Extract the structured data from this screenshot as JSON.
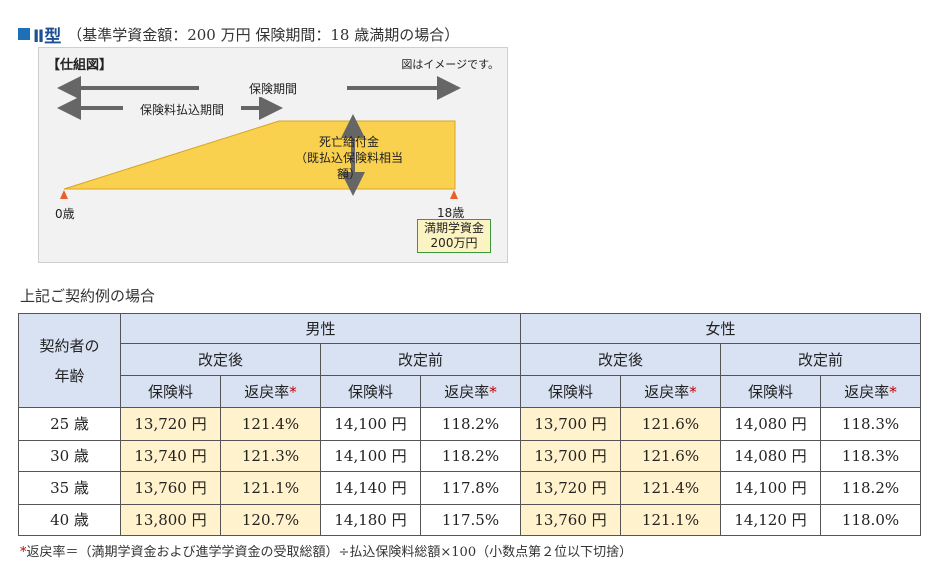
{
  "heading": {
    "type_label": "Ⅱ型",
    "description": "（基準学資金額：200 万円  保険期間：18 歳満期の場合）"
  },
  "diagram": {
    "title": "【仕組図】",
    "note": "図はイメージです。",
    "period_label": "保険期間",
    "payment_label": "保険料払込期間",
    "death_benefit_line1": "死亡給付金",
    "death_benefit_line2": "（既払込保険料相当額）",
    "start_age": "0歳",
    "end_age": "18歳",
    "maturity_line1": "満期学資金",
    "maturity_line2": "200万円",
    "colors": {
      "fill": "#f9d14f",
      "arrow": "#666666",
      "marker": "#e8612c",
      "box_border": "#3b9a3b"
    }
  },
  "caption": "上記ご契約例の場合",
  "table": {
    "age_header_line1": "契約者の",
    "age_header_line2": "年齢",
    "male": "男性",
    "female": "女性",
    "after_revision": "改定後",
    "before_revision": "改定前",
    "premium": "保険料",
    "return_rate": "返戻率",
    "asterisk": "*",
    "rows": [
      {
        "age": "25 歳",
        "m_after_prem": "13,720 円",
        "m_after_rate": "121.4%",
        "m_before_prem": "14,100 円",
        "m_before_rate": "118.2%",
        "f_after_prem": "13,700 円",
        "f_after_rate": "121.6%",
        "f_before_prem": "14,080 円",
        "f_before_rate": "118.3%"
      },
      {
        "age": "30 歳",
        "m_after_prem": "13,740 円",
        "m_after_rate": "121.3%",
        "m_before_prem": "14,100 円",
        "m_before_rate": "118.2%",
        "f_after_prem": "13,700 円",
        "f_after_rate": "121.6%",
        "f_before_prem": "14,080 円",
        "f_before_rate": "118.3%"
      },
      {
        "age": "35 歳",
        "m_after_prem": "13,760 円",
        "m_after_rate": "121.1%",
        "m_before_prem": "14,140 円",
        "m_before_rate": "117.8%",
        "f_after_prem": "13,720 円",
        "f_after_rate": "121.4%",
        "f_before_prem": "14,100 円",
        "f_before_rate": "118.2%"
      },
      {
        "age": "40 歳",
        "m_after_prem": "13,800 円",
        "m_after_rate": "120.7%",
        "m_before_prem": "14,180 円",
        "m_before_rate": "117.5%",
        "f_after_prem": "13,760 円",
        "f_after_rate": "121.1%",
        "f_before_prem": "14,120 円",
        "f_before_rate": "118.0%"
      }
    ],
    "colors": {
      "header": "#d9e2f3",
      "highlight": "#fff2cc",
      "asterisk": "#c00000"
    }
  },
  "footnote": {
    "asterisk": "*",
    "text": "返戻率＝（満期学資金および進学学資金の受取総額）÷払込保険料総額×100（小数点第２位以下切捨）"
  }
}
